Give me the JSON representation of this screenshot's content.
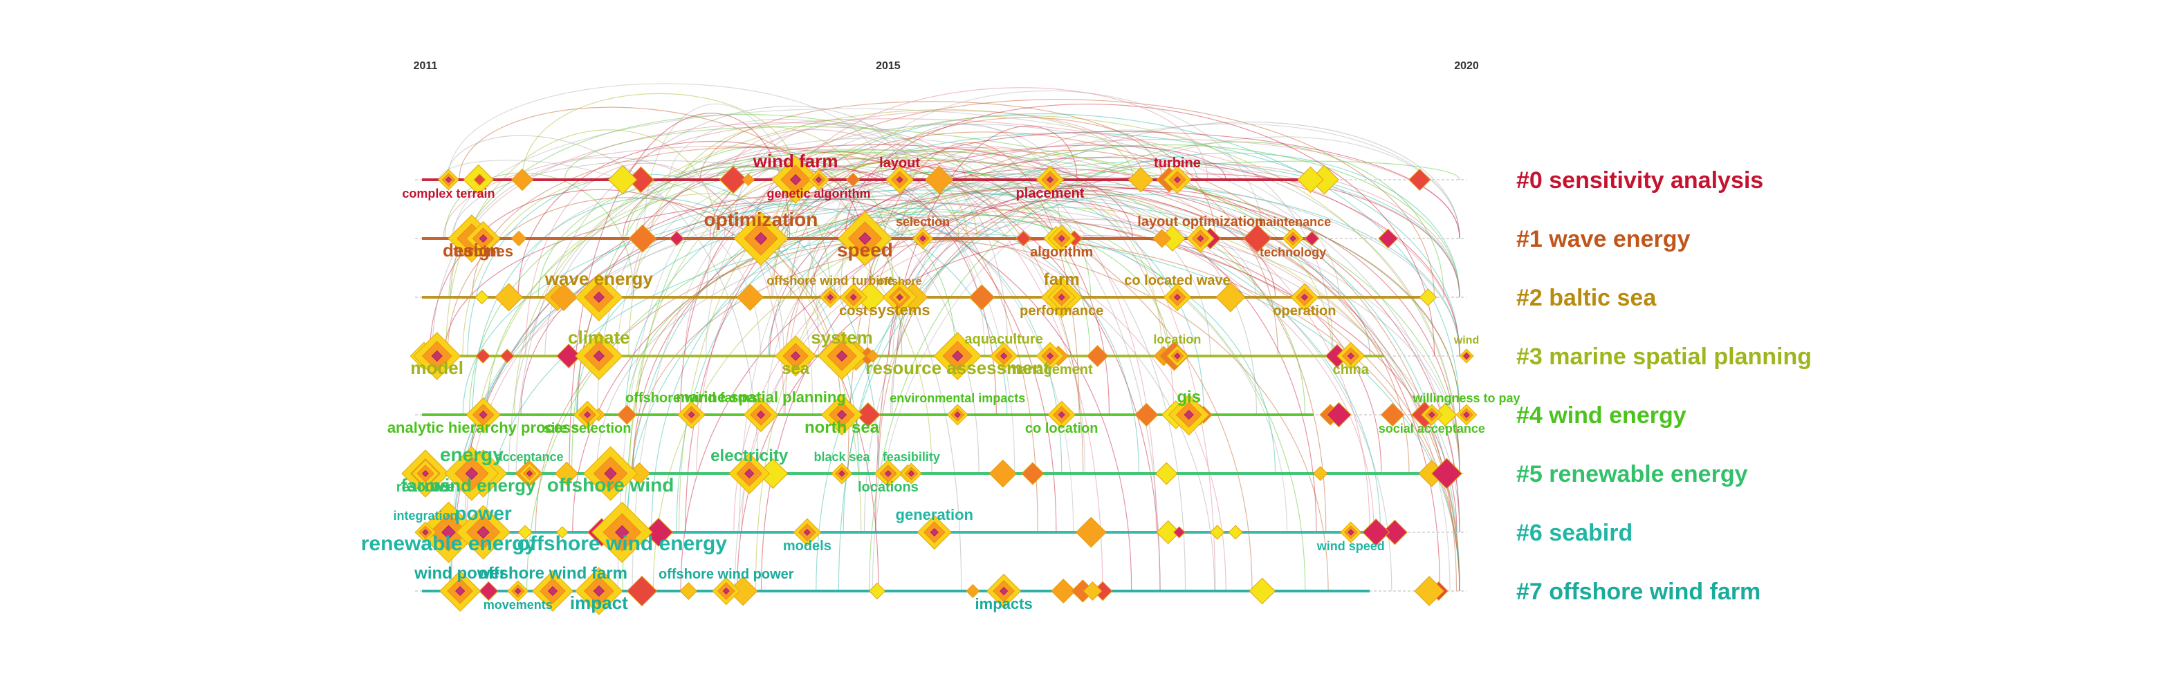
{
  "figure": {
    "title": "",
    "subtitle": ""
  },
  "chart_data": {
    "type": "timeline",
    "x_axis": {
      "ticks": [
        "2011",
        "2015",
        "2020"
      ],
      "range": [
        2011,
        2020
      ]
    },
    "clusters": [
      {
        "id": 0,
        "label": "#0 sensitivity analysis",
        "color": "#c4122f"
      },
      {
        "id": 1,
        "label": "#1 wave energy",
        "color": "#c0561c"
      },
      {
        "id": 2,
        "label": "#2 baltic sea",
        "color": "#b88a0e"
      },
      {
        "id": 3,
        "label": "#3 marine spatial planning",
        "color": "#9fb51c"
      },
      {
        "id": 4,
        "label": "#4 wind energy",
        "color": "#4cc21f"
      },
      {
        "id": 5,
        "label": "#5 renewable energy",
        "color": "#33c06a"
      },
      {
        "id": 6,
        "label": "#6 seabird",
        "color": "#21b5a4"
      },
      {
        "id": 7,
        "label": "#7 offshore wind farm",
        "color": "#19ab9c"
      }
    ],
    "keywords": [
      {
        "text": "complex terrain",
        "cluster": 0,
        "year": 2011.2,
        "size": 18
      },
      {
        "text": "wind farm",
        "cluster": 0,
        "year": 2014.2,
        "size": 26
      },
      {
        "text": "genetic algorithm",
        "cluster": 0,
        "year": 2014.4,
        "size": 18
      },
      {
        "text": "layout",
        "cluster": 0,
        "year": 2015.1,
        "size": 20
      },
      {
        "text": "placement",
        "cluster": 0,
        "year": 2016.4,
        "size": 20
      },
      {
        "text": "turbine",
        "cluster": 0,
        "year": 2017.5,
        "size": 20
      },
      {
        "text": "design",
        "cluster": 1,
        "year": 2011.4,
        "size": 26
      },
      {
        "text": "optimization",
        "cluster": 1,
        "year": 2013.9,
        "size": 28
      },
      {
        "text": "speed",
        "cluster": 1,
        "year": 2014.8,
        "size": 28
      },
      {
        "text": "selection",
        "cluster": 1,
        "year": 2015.3,
        "size": 18
      },
      {
        "text": "algorithm",
        "cluster": 1,
        "year": 2016.5,
        "size": 20
      },
      {
        "text": "layout optimization",
        "cluster": 1,
        "year": 2017.7,
        "size": 20
      },
      {
        "text": "technology",
        "cluster": 1,
        "year": 2018.5,
        "size": 18
      },
      {
        "text": "maintenance",
        "cluster": 1,
        "year": 2018.5,
        "size": 18
      },
      {
        "text": "turbines",
        "cluster": 1,
        "year": 2011.5,
        "size": 22
      },
      {
        "text": "wave energy",
        "cluster": 2,
        "year": 2012.5,
        "size": 26
      },
      {
        "text": "cost",
        "cluster": 2,
        "year": 2014.7,
        "size": 20
      },
      {
        "text": "offshore wind turbine",
        "cluster": 2,
        "year": 2014.5,
        "size": 18
      },
      {
        "text": "systems",
        "cluster": 2,
        "year": 2015.1,
        "size": 22
      },
      {
        "text": "farm",
        "cluster": 2,
        "year": 2016.5,
        "size": 24
      },
      {
        "text": "performance",
        "cluster": 2,
        "year": 2016.5,
        "size": 20
      },
      {
        "text": "co located wave",
        "cluster": 2,
        "year": 2017.5,
        "size": 20
      },
      {
        "text": "operation",
        "cluster": 2,
        "year": 2018.6,
        "size": 20
      },
      {
        "text": "offshore",
        "cluster": 2,
        "year": 2015.1,
        "size": 16
      },
      {
        "text": "model",
        "cluster": 3,
        "year": 2011.1,
        "size": 26
      },
      {
        "text": "climate",
        "cluster": 3,
        "year": 2012.5,
        "size": 26
      },
      {
        "text": "sea",
        "cluster": 3,
        "year": 2014.2,
        "size": 24
      },
      {
        "text": "system",
        "cluster": 3,
        "year": 2014.6,
        "size": 26
      },
      {
        "text": "resource assessment",
        "cluster": 3,
        "year": 2015.6,
        "size": 26
      },
      {
        "text": "aquaculture",
        "cluster": 3,
        "year": 2016.0,
        "size": 20
      },
      {
        "text": "management",
        "cluster": 3,
        "year": 2016.4,
        "size": 20
      },
      {
        "text": "location",
        "cluster": 3,
        "year": 2017.5,
        "size": 18
      },
      {
        "text": "china",
        "cluster": 3,
        "year": 2019.0,
        "size": 20
      },
      {
        "text": "wind",
        "cluster": 3,
        "year": 2020.0,
        "size": 16
      },
      {
        "text": "analytic hierarchy process",
        "cluster": 4,
        "year": 2011.5,
        "size": 22
      },
      {
        "text": "marine spatial planning",
        "cluster": 4,
        "year": 2013.9,
        "size": 22
      },
      {
        "text": "site selection",
        "cluster": 4,
        "year": 2012.4,
        "size": 20
      },
      {
        "text": "offshore wind farms",
        "cluster": 4,
        "year": 2013.3,
        "size": 20
      },
      {
        "text": "north sea",
        "cluster": 4,
        "year": 2014.6,
        "size": 24
      },
      {
        "text": "environmental impacts",
        "cluster": 4,
        "year": 2015.6,
        "size": 18
      },
      {
        "text": "co location",
        "cluster": 4,
        "year": 2016.5,
        "size": 20
      },
      {
        "text": "gis",
        "cluster": 4,
        "year": 2017.6,
        "size": 24
      },
      {
        "text": "social acceptance",
        "cluster": 4,
        "year": 2019.7,
        "size": 18
      },
      {
        "text": "willingness to pay",
        "cluster": 4,
        "year": 2020.0,
        "size": 18
      },
      {
        "text": "farms",
        "cluster": 5,
        "year": 2011.0,
        "size": 26
      },
      {
        "text": "acceptance",
        "cluster": 5,
        "year": 2011.9,
        "size": 18
      },
      {
        "text": "wind energy",
        "cluster": 5,
        "year": 2011.5,
        "size": 26
      },
      {
        "text": "energy",
        "cluster": 5,
        "year": 2011.4,
        "size": 28
      },
      {
        "text": "offshore wind",
        "cluster": 5,
        "year": 2012.6,
        "size": 28
      },
      {
        "text": "electricity",
        "cluster": 5,
        "year": 2013.8,
        "size": 24
      },
      {
        "text": "resource",
        "cluster": 5,
        "year": 2011.0,
        "size": 20
      },
      {
        "text": "black sea",
        "cluster": 5,
        "year": 2014.6,
        "size": 18
      },
      {
        "text": "locations",
        "cluster": 5,
        "year": 2015.0,
        "size": 20
      },
      {
        "text": "feasibility",
        "cluster": 5,
        "year": 2015.2,
        "size": 18
      },
      {
        "text": "renewable energy",
        "cluster": 6,
        "year": 2011.2,
        "size": 30
      },
      {
        "text": "power",
        "cluster": 6,
        "year": 2011.5,
        "size": 28
      },
      {
        "text": "offshore wind energy",
        "cluster": 6,
        "year": 2012.7,
        "size": 30
      },
      {
        "text": "integration",
        "cluster": 6,
        "year": 2011.0,
        "size": 18
      },
      {
        "text": "models",
        "cluster": 6,
        "year": 2014.3,
        "size": 20
      },
      {
        "text": "generation",
        "cluster": 6,
        "year": 2015.4,
        "size": 22
      },
      {
        "text": "wind speed",
        "cluster": 6,
        "year": 2019.0,
        "size": 18
      },
      {
        "text": "wind power",
        "cluster": 7,
        "year": 2011.3,
        "size": 24
      },
      {
        "text": "impact",
        "cluster": 7,
        "year": 2012.5,
        "size": 26
      },
      {
        "text": "offshore wind power",
        "cluster": 7,
        "year": 2013.6,
        "size": 20
      },
      {
        "text": "movements",
        "cluster": 7,
        "year": 2011.8,
        "size": 18
      },
      {
        "text": "offshore wind farm",
        "cluster": 7,
        "year": 2012.1,
        "size": 24
      },
      {
        "text": "impacts",
        "cluster": 7,
        "year": 2016.0,
        "size": 22
      }
    ],
    "grid": false,
    "legend": "right"
  }
}
